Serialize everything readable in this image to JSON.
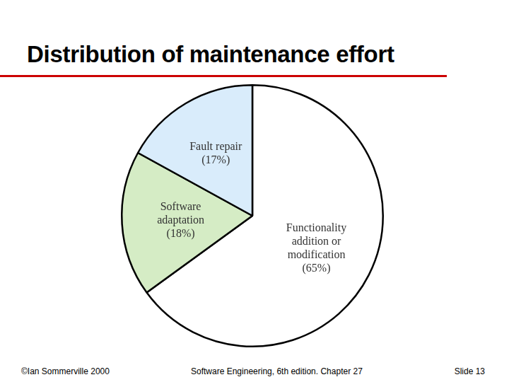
{
  "chart_data": {
    "type": "pie",
    "title": "Distribution of maintenance effort",
    "categories": [
      "Functionality addition or modification",
      "Software adaptation",
      "Fault repair"
    ],
    "values": [
      65,
      18,
      17
    ],
    "value_labels": [
      "(65%)",
      "(18%)",
      "(17%)"
    ],
    "colors": [
      "#ffffff",
      "#d5ecc5",
      "#d9ecfb"
    ],
    "data_labels": true
  },
  "footer": {
    "left": "©Ian Sommerville 2000",
    "center": "Software Engineering, 6th edition. Chapter 27",
    "right": "Slide 13"
  }
}
